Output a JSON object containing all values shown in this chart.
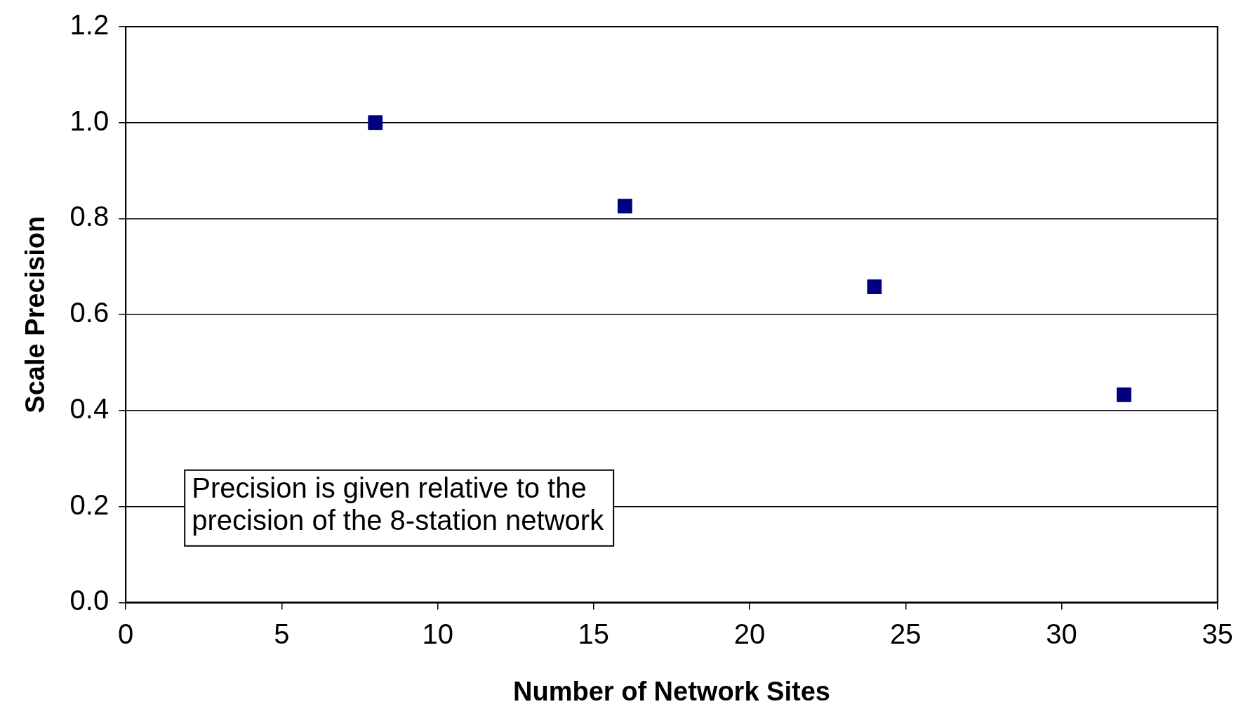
{
  "chart_data": {
    "type": "scatter",
    "xlabel": "Number of Network Sites",
    "ylabel": "Scale Precision",
    "x": [
      8,
      16,
      24,
      32
    ],
    "series": [
      {
        "color": "#000080",
        "values": [
          1.0,
          0.826,
          0.658,
          0.433
        ]
      }
    ],
    "xlim": [
      0,
      35
    ],
    "xticks": [
      0,
      5,
      10,
      15,
      20,
      25,
      30,
      35
    ],
    "ylim": [
      0,
      1.2
    ],
    "yticks": [
      {
        "value": 0,
        "label": "0.0"
      },
      {
        "value": 0.2,
        "label": "0.2"
      },
      {
        "value": 0.4,
        "label": "0.4"
      },
      {
        "value": 0.6,
        "label": "0.6"
      },
      {
        "value": 0.8,
        "label": "0.8"
      },
      {
        "value": 1.0,
        "label": "1.0"
      },
      {
        "value": 1.2,
        "label": "1.2"
      }
    ],
    "grid": "y",
    "marker": "square",
    "legend": false,
    "annotations": [
      "Precision is given relative to the precision of the 8-station network"
    ]
  }
}
